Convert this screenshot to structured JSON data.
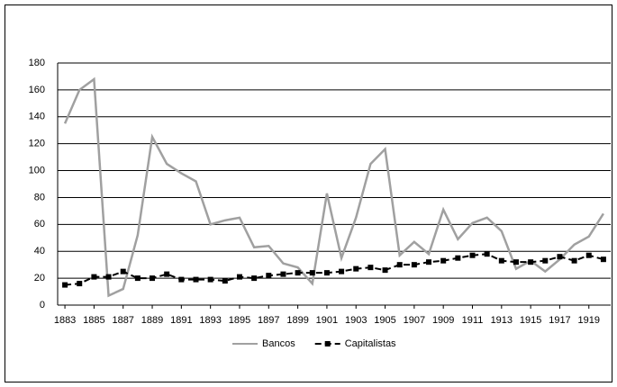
{
  "chart_data": {
    "type": "line",
    "x": [
      1883,
      1884,
      1885,
      1886,
      1887,
      1888,
      1889,
      1890,
      1891,
      1892,
      1893,
      1894,
      1895,
      1896,
      1897,
      1898,
      1899,
      1900,
      1901,
      1902,
      1903,
      1904,
      1905,
      1906,
      1907,
      1908,
      1909,
      1910,
      1911,
      1912,
      1913,
      1914,
      1915,
      1916,
      1917,
      1918,
      1919,
      1920
    ],
    "series": [
      {
        "name": "Bancos",
        "color": "#a0a0a0",
        "values": [
          135,
          160,
          168,
          7,
          12,
          52,
          125,
          105,
          98,
          92,
          60,
          63,
          65,
          43,
          44,
          31,
          28,
          16,
          83,
          35,
          65,
          105,
          116,
          37,
          47,
          38,
          71,
          49,
          61,
          65,
          55,
          27,
          33,
          25,
          34,
          45,
          51,
          68
        ]
      },
      {
        "name": "Capitalistas",
        "color": "#000000",
        "values": [
          15,
          16,
          21,
          21,
          25,
          20,
          20,
          23,
          19,
          19,
          19,
          18,
          21,
          20,
          22,
          23,
          24,
          24,
          24,
          25,
          27,
          28,
          26,
          30,
          30,
          32,
          33,
          35,
          37,
          38,
          33,
          32,
          32,
          33,
          36,
          33,
          37,
          34
        ]
      }
    ],
    "xlim": [
      1882.5,
      1920.5
    ],
    "xticks": [
      1883,
      1885,
      1887,
      1889,
      1891,
      1893,
      1895,
      1897,
      1899,
      1901,
      1903,
      1905,
      1907,
      1909,
      1911,
      1913,
      1915,
      1917,
      1919
    ],
    "ylim": [
      0,
      180
    ],
    "yticks": [
      0,
      20,
      40,
      60,
      80,
      100,
      120,
      140,
      160,
      180
    ],
    "grid": true
  }
}
